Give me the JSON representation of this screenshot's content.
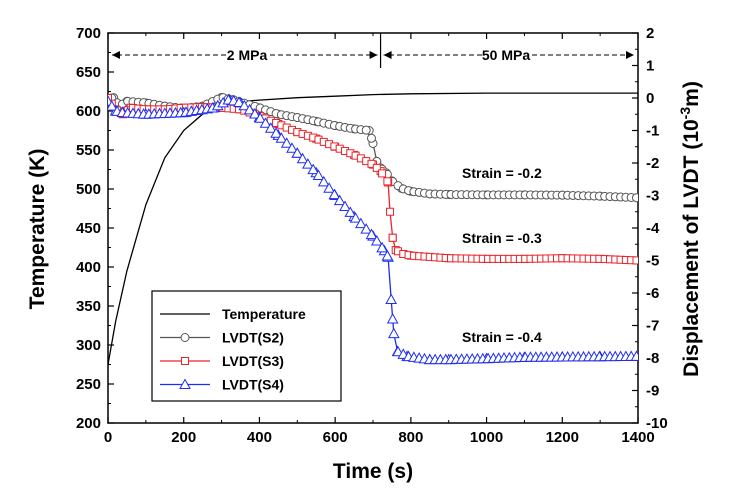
{
  "chart_data": {
    "type": "line",
    "x_axis": {
      "label": "Time (s)",
      "range": [
        0,
        1400
      ],
      "ticks": [
        "0",
        "200",
        "400",
        "600",
        "800",
        "1000",
        "1200",
        "1400"
      ]
    },
    "y_left": {
      "label": "Temperature (K)",
      "range": [
        200,
        700
      ],
      "ticks": [
        "200",
        "250",
        "300",
        "350",
        "400",
        "450",
        "500",
        "550",
        "600",
        "650",
        "700"
      ]
    },
    "y_right": {
      "label_prefix": "Displacement of LVDT (10",
      "label_exp": "-3",
      "label_suffix": "m)",
      "range": [
        -10,
        2
      ],
      "ticks": [
        "-10",
        "-9",
        "-8",
        "-7",
        "-6",
        "-5",
        "-4",
        "-3",
        "-2",
        "-1",
        "0",
        "1",
        "2"
      ]
    },
    "annotations": {
      "stage1": "2 MPa",
      "stage2": "50 MPa",
      "strain_s2": "Strain = -0.2",
      "strain_s3": "Strain = -0.3",
      "strain_s4": "Strain = -0.4"
    },
    "stage_boundary_time": 720,
    "legend": [
      "Temperature",
      "LVDT(S2)",
      "LVDT(S3)",
      "LVDT(S4)"
    ],
    "series": [
      {
        "name": "Temperature",
        "axis": "left",
        "color": "#000000",
        "marker": "none",
        "points": [
          [
            0,
            275
          ],
          [
            20,
            330
          ],
          [
            50,
            395
          ],
          [
            100,
            480
          ],
          [
            150,
            540
          ],
          [
            200,
            575
          ],
          [
            250,
            596
          ],
          [
            300,
            607
          ],
          [
            350,
            612
          ],
          [
            400,
            614
          ],
          [
            500,
            617
          ],
          [
            600,
            619
          ],
          [
            700,
            621
          ],
          [
            800,
            622
          ],
          [
            1000,
            623
          ],
          [
            1200,
            623
          ],
          [
            1400,
            623
          ]
        ]
      },
      {
        "name": "LVDT(S2)",
        "axis": "right",
        "color": "#555555",
        "marker": "circle",
        "points": [
          [
            0,
            -0.02
          ],
          [
            15,
            0.01
          ],
          [
            30,
            -0.25
          ],
          [
            50,
            -0.1
          ],
          [
            100,
            -0.15
          ],
          [
            150,
            -0.25
          ],
          [
            200,
            -0.32
          ],
          [
            250,
            -0.25
          ],
          [
            300,
            0.02
          ],
          [
            330,
            -0.05
          ],
          [
            400,
            -0.3
          ],
          [
            450,
            -0.5
          ],
          [
            500,
            -0.6
          ],
          [
            550,
            -0.72
          ],
          [
            600,
            -0.85
          ],
          [
            650,
            -0.95
          ],
          [
            690,
            -1.0
          ],
          [
            700,
            -1.4
          ],
          [
            710,
            -1.95
          ],
          [
            720,
            -2.15
          ],
          [
            735,
            -2.3
          ],
          [
            750,
            -2.55
          ],
          [
            775,
            -2.78
          ],
          [
            800,
            -2.87
          ],
          [
            850,
            -2.95
          ],
          [
            900,
            -2.97
          ],
          [
            1000,
            -2.98
          ],
          [
            1100,
            -2.98
          ],
          [
            1200,
            -2.99
          ],
          [
            1300,
            -3.02
          ],
          [
            1400,
            -3.07
          ]
        ]
      },
      {
        "name": "LVDT(S3)",
        "axis": "right",
        "color": "#e8242a",
        "marker": "square",
        "points": [
          [
            0,
            0.0
          ],
          [
            20,
            -0.35
          ],
          [
            40,
            -0.5
          ],
          [
            60,
            -0.3
          ],
          [
            100,
            -0.35
          ],
          [
            150,
            -0.35
          ],
          [
            200,
            -0.3
          ],
          [
            250,
            -0.28
          ],
          [
            300,
            -0.3
          ],
          [
            350,
            -0.35
          ],
          [
            400,
            -0.55
          ],
          [
            450,
            -0.8
          ],
          [
            500,
            -1.05
          ],
          [
            550,
            -1.25
          ],
          [
            600,
            -1.5
          ],
          [
            650,
            -1.75
          ],
          [
            700,
            -2.05
          ],
          [
            720,
            -2.25
          ],
          [
            740,
            -2.6
          ],
          [
            745,
            -3.5
          ],
          [
            752,
            -4.3
          ],
          [
            760,
            -4.68
          ],
          [
            780,
            -4.8
          ],
          [
            800,
            -4.85
          ],
          [
            900,
            -4.93
          ],
          [
            1000,
            -4.95
          ],
          [
            1100,
            -4.95
          ],
          [
            1200,
            -4.93
          ],
          [
            1300,
            -4.95
          ],
          [
            1400,
            -5.0
          ]
        ]
      },
      {
        "name": "LVDT(S4)",
        "axis": "right",
        "color": "#1e2df0",
        "marker": "triangle",
        "points": [
          [
            0,
            -0.1
          ],
          [
            20,
            -0.4
          ],
          [
            40,
            -0.45
          ],
          [
            100,
            -0.5
          ],
          [
            200,
            -0.45
          ],
          [
            280,
            -0.3
          ],
          [
            320,
            -0.05
          ],
          [
            350,
            -0.15
          ],
          [
            400,
            -0.6
          ],
          [
            450,
            -1.15
          ],
          [
            500,
            -1.7
          ],
          [
            550,
            -2.3
          ],
          [
            600,
            -3.0
          ],
          [
            650,
            -3.65
          ],
          [
            700,
            -4.25
          ],
          [
            730,
            -4.7
          ],
          [
            740,
            -4.9
          ],
          [
            748,
            -6.2
          ],
          [
            755,
            -7.25
          ],
          [
            765,
            -7.8
          ],
          [
            790,
            -7.95
          ],
          [
            850,
            -8.05
          ],
          [
            900,
            -8.05
          ],
          [
            1000,
            -8.02
          ],
          [
            1100,
            -7.98
          ],
          [
            1200,
            -7.97
          ],
          [
            1300,
            -7.96
          ],
          [
            1400,
            -7.95
          ]
        ]
      }
    ]
  }
}
